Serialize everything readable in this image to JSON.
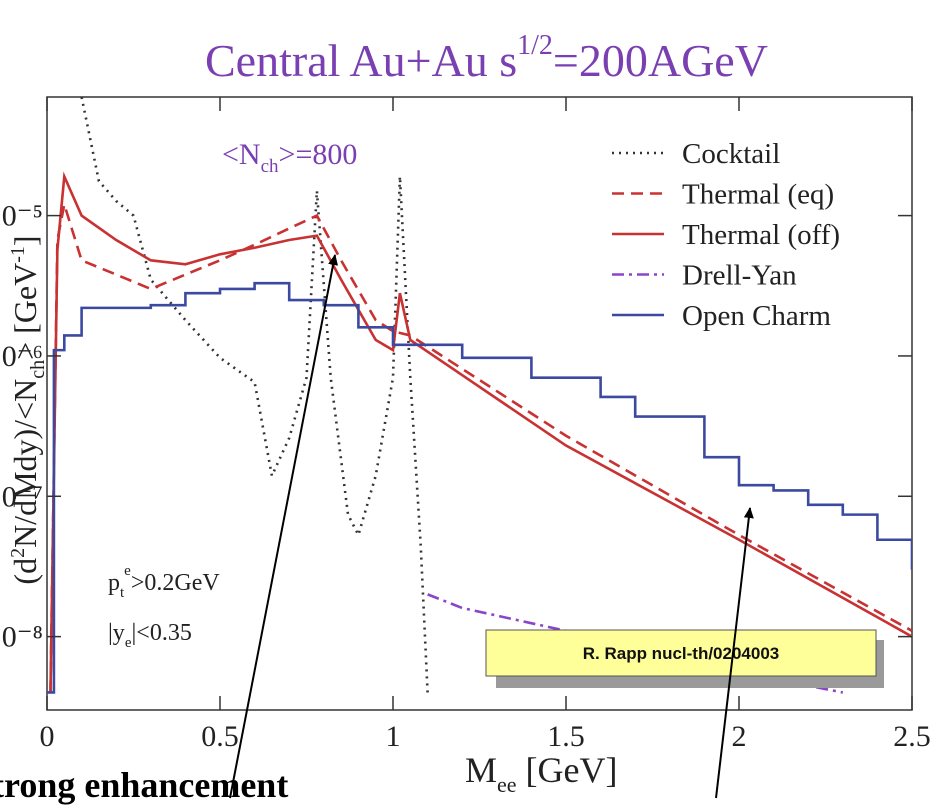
{
  "chart_data": {
    "type": "line",
    "title": "Central Au+Au   s",
    "title_sup": "1/2",
    "title_rest": "=200AGeV",
    "y_label": {
      "a": "(d",
      "b": "2",
      "c": "N/dMdy)/<N",
      "d": "ch",
      "e": "> [GeV",
      "f": "-1",
      "g": "]"
    },
    "x_label": {
      "a": "M",
      "b": "ee",
      "c": " [GeV]"
    },
    "annotations": [
      {
        "a": "<N",
        "b": "ch",
        "c": ">=800"
      },
      {
        "a": "p",
        "b": "t",
        "sup": "e",
        "c": ">0.2GeV"
      },
      {
        "a": "|y",
        "b": "e",
        "c": "|<0.35"
      }
    ],
    "reference": "R. Rapp nucl-th/0204003",
    "caption": "trong enhancement",
    "xlim": [
      0,
      2.5
    ],
    "xticks": [
      0,
      0.5,
      1,
      1.5,
      2,
      2.5
    ],
    "ylim": [
      3e-09,
      7e-05
    ],
    "log_y": true,
    "yticks": [
      {
        "value": 1e-05,
        "label": "10⁻⁵"
      },
      {
        "value": 1e-06,
        "label": "10⁻⁶"
      },
      {
        "value": 1e-07,
        "label": "10⁻⁷"
      },
      {
        "value": 1e-08,
        "label": "10⁻⁸"
      }
    ],
    "legend": "top-right",
    "series": [
      {
        "name": "Cocktail",
        "color": "#333333",
        "dash": "2,5",
        "x": [
          0.1,
          0.15,
          0.2,
          0.25,
          0.3,
          0.4,
          0.5,
          0.6,
          0.65,
          0.7,
          0.75,
          0.78,
          0.82,
          0.87,
          0.9,
          0.95,
          1.0,
          1.02,
          1.05,
          1.08,
          1.1
        ],
        "values": [
          7e-05,
          1.76e-05,
          1.27e-05,
          1e-05,
          3.5e-06,
          1.8e-06,
          9.7e-07,
          6.5e-07,
          1.4e-07,
          2.6e-07,
          7e-07,
          1.5e-05,
          7e-07,
          7.4e-08,
          5.3e-08,
          1.4e-07,
          7e-07,
          1.9e-05,
          7e-07,
          4.5e-08,
          4e-09
        ]
      },
      {
        "name": "Thermal (eq)",
        "color": "#c83232",
        "dash": "12,7",
        "x": [
          0.01,
          0.03,
          0.05,
          0.1,
          0.2,
          0.3,
          0.4,
          0.5,
          0.6,
          0.7,
          0.78,
          0.85,
          0.95,
          1.0,
          1.05,
          1.5,
          2.0,
          2.5
        ],
        "values": [
          4e-09,
          6.7e-06,
          1.2e-05,
          4.8e-06,
          3.8e-06,
          3e-06,
          3.8e-06,
          4.8e-06,
          6.2e-06,
          8.1e-06,
          1e-05,
          4.8e-06,
          1.8e-06,
          1.5e-06,
          1.4e-06,
          2.7e-07,
          5.3e-08,
          1.1e-08
        ]
      },
      {
        "name": "Thermal (off)",
        "color": "#c83232",
        "dash": "",
        "x": [
          0.01,
          0.03,
          0.05,
          0.1,
          0.2,
          0.3,
          0.4,
          0.5,
          0.6,
          0.7,
          0.78,
          0.85,
          0.95,
          1.0,
          1.02,
          1.05,
          1.5,
          2.0,
          2.5
        ],
        "values": [
          4e-09,
          5.7e-06,
          1.9e-05,
          1e-05,
          6.7e-06,
          4.8e-06,
          4.5e-06,
          5.3e-06,
          5.9e-06,
          6.7e-06,
          7.2e-06,
          3.5e-06,
          1.3e-06,
          1.1e-06,
          2.8e-06,
          1.3e-06,
          2.3e-07,
          4.9e-08,
          1e-08
        ]
      },
      {
        "name": "Drell-Yan",
        "color": "#8a45c8",
        "dash": "12,5,3,5",
        "x": [
          1.1,
          1.2,
          1.5,
          2.0,
          2.3
        ],
        "values": [
          2e-08,
          1.6e-08,
          1.1e-08,
          5.6e-09,
          4e-09
        ]
      },
      {
        "name": "Open Charm",
        "color": "#3b4aa0",
        "dash": "",
        "step": true,
        "x": [
          0,
          0.02,
          0.05,
          0.1,
          0.3,
          0.4,
          0.5,
          0.6,
          0.7,
          0.8,
          0.9,
          1.0,
          1.2,
          1.4,
          1.6,
          1.7,
          1.9,
          2.0,
          2.1,
          2.2,
          2.3,
          2.4,
          2.5
        ],
        "values": [
          4e-09,
          1.1e-06,
          1.4e-06,
          2.2e-06,
          2.3e-06,
          2.8e-06,
          3e-06,
          3.3e-06,
          2.5e-06,
          2.3e-06,
          1.6e-06,
          1.2e-06,
          9.7e-07,
          7e-07,
          5.1e-07,
          3.7e-07,
          1.9e-07,
          1.2e-07,
          1.1e-07,
          8.7e-08,
          7.4e-08,
          4.9e-08,
          3e-08
        ]
      }
    ]
  }
}
